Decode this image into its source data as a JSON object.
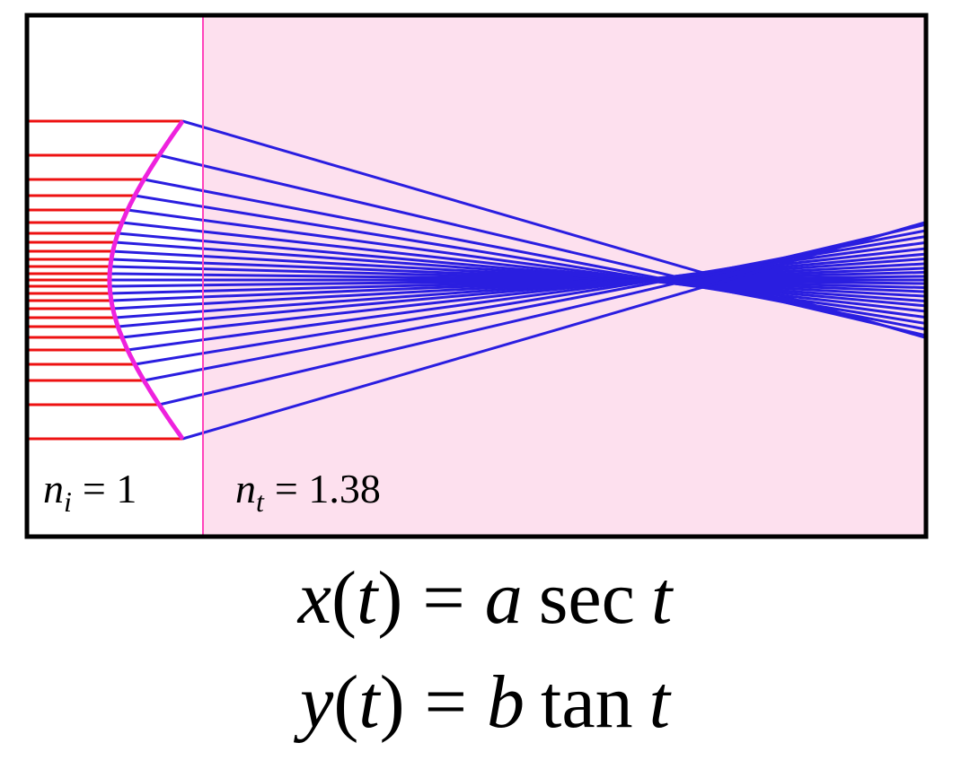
{
  "labels": [
    {
      "var": "n",
      "sub": "i",
      "rest": "= 1"
    },
    {
      "var": "n",
      "sub": "t",
      "rest": "= 1.38"
    }
  ],
  "equations": [
    [
      {
        "text": "x",
        "italic": true
      },
      {
        "text": "(",
        "italic": false
      },
      {
        "text": "t",
        "italic": true
      },
      {
        "text": ")",
        "italic": false
      },
      {
        "text": "=",
        "italic": false
      },
      {
        "text": "a",
        "italic": true
      },
      {
        "text": "sec",
        "italic": false
      },
      {
        "text": "t",
        "italic": true
      }
    ],
    [
      {
        "text": "y",
        "italic": true
      },
      {
        "text": "(",
        "italic": false
      },
      {
        "text": "t",
        "italic": true
      },
      {
        "text": ")",
        "italic": false
      },
      {
        "text": "=",
        "italic": false
      },
      {
        "text": "b",
        "italic": true
      },
      {
        "text": "tan",
        "italic": false
      },
      {
        "text": "t",
        "italic": true
      }
    ]
  ]
}
